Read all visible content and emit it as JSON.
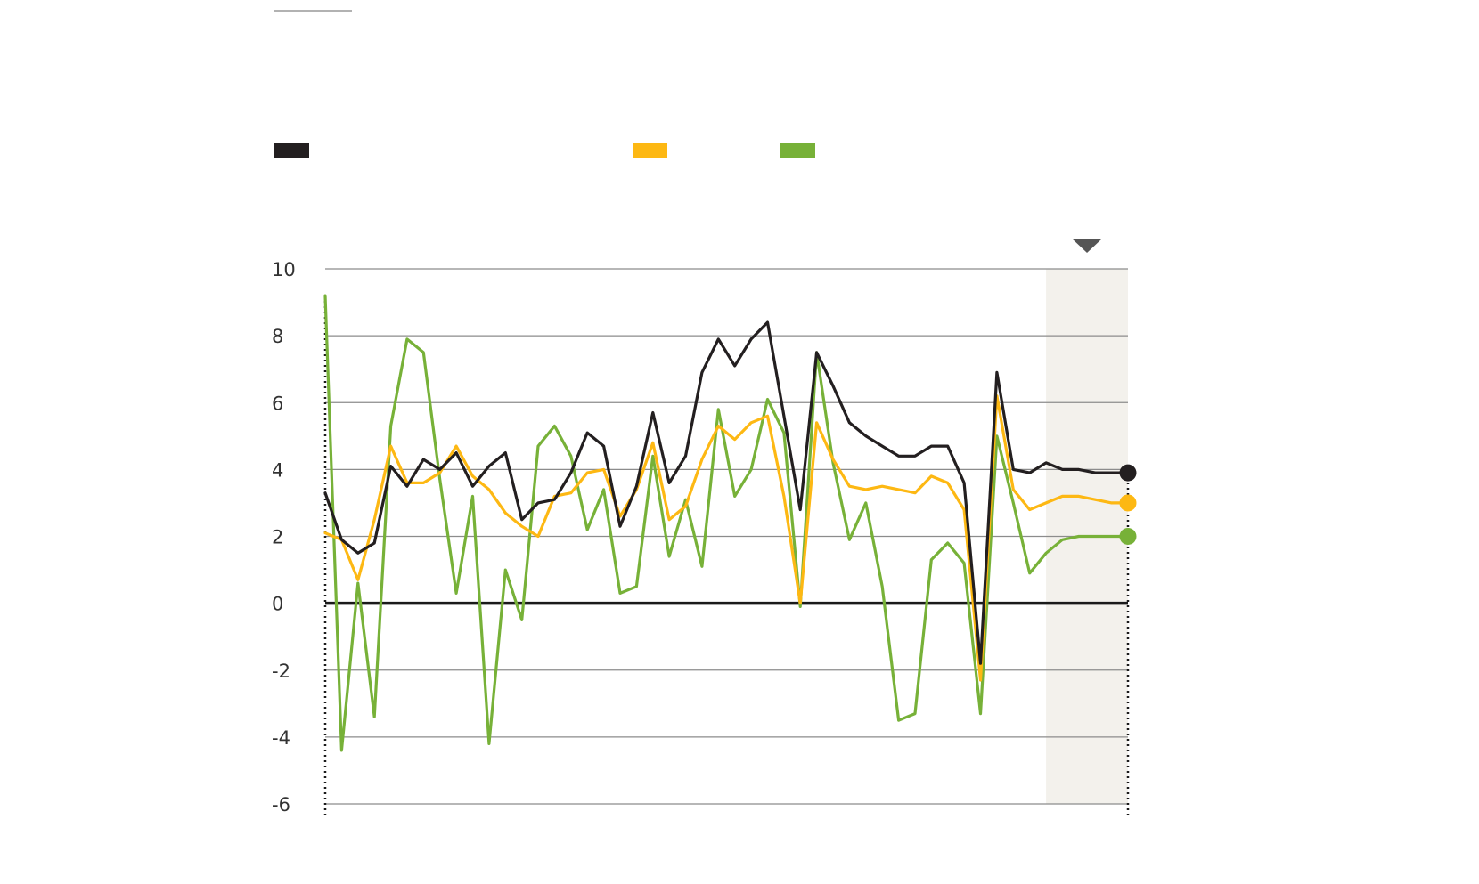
{
  "chart_data": {
    "type": "line",
    "title": "",
    "xlabel": "",
    "ylabel": "",
    "ylim": [
      -6,
      10
    ],
    "yticks": [
      10,
      8,
      6,
      4,
      2,
      0,
      -2,
      -4,
      -6
    ],
    "grid": true,
    "legend_position": "top-left",
    "x": [
      1,
      2,
      3,
      4,
      5,
      6,
      7,
      8,
      9,
      10,
      11,
      12,
      13,
      14,
      15,
      16,
      17,
      18,
      19,
      20,
      21,
      22,
      23,
      24,
      25,
      26,
      27,
      28,
      29,
      30,
      31,
      32,
      33,
      34,
      35,
      36,
      37,
      38,
      39,
      40,
      41,
      42,
      43,
      44,
      45,
      46,
      47,
      48,
      49,
      50
    ],
    "forecast_start_x": 45,
    "series": [
      {
        "name": "",
        "color": "#231f20",
        "values": [
          3.3,
          1.9,
          1.5,
          1.8,
          4.1,
          3.5,
          4.3,
          4.0,
          4.5,
          3.5,
          4.1,
          4.5,
          2.5,
          3.0,
          3.1,
          3.9,
          5.1,
          4.7,
          2.3,
          3.5,
          5.7,
          3.6,
          4.4,
          6.9,
          7.9,
          7.1,
          7.9,
          8.4,
          5.6,
          2.8,
          7.5,
          6.5,
          5.4,
          5.0,
          4.7,
          4.4,
          4.4,
          4.7,
          4.7,
          3.6,
          -1.8,
          6.9,
          4.0,
          3.9,
          4.2,
          4.0,
          4.0,
          3.9,
          3.9,
          3.9
        ]
      },
      {
        "name": "",
        "color": "#fdb813",
        "values": [
          2.1,
          1.9,
          0.7,
          2.5,
          4.7,
          3.6,
          3.6,
          3.9,
          4.7,
          3.8,
          3.4,
          2.7,
          2.3,
          2.0,
          3.2,
          3.3,
          3.9,
          4.0,
          2.6,
          3.4,
          4.8,
          2.5,
          2.9,
          4.3,
          5.3,
          4.9,
          5.4,
          5.6,
          3.2,
          0.0,
          5.4,
          4.3,
          3.5,
          3.4,
          3.5,
          3.4,
          3.3,
          3.8,
          3.6,
          2.8,
          -2.3,
          6.2,
          3.4,
          2.8,
          3.0,
          3.2,
          3.2,
          3.1,
          3.0,
          3.0
        ]
      },
      {
        "name": "",
        "color": "#77b138",
        "values": [
          9.2,
          -4.4,
          0.6,
          -3.4,
          5.3,
          7.9,
          7.5,
          3.7,
          0.3,
          3.2,
          -4.2,
          1.0,
          -0.5,
          4.7,
          5.3,
          4.4,
          2.2,
          3.4,
          0.3,
          0.5,
          4.4,
          1.4,
          3.1,
          1.1,
          5.8,
          3.2,
          4.0,
          6.1,
          5.1,
          -0.1,
          7.5,
          4.2,
          1.9,
          3.0,
          0.5,
          -3.5,
          -3.3,
          1.3,
          1.8,
          1.2,
          -3.3,
          5.0,
          3.0,
          0.9,
          1.5,
          1.9,
          2.0,
          2.0,
          2.0,
          2.0
        ]
      }
    ]
  }
}
